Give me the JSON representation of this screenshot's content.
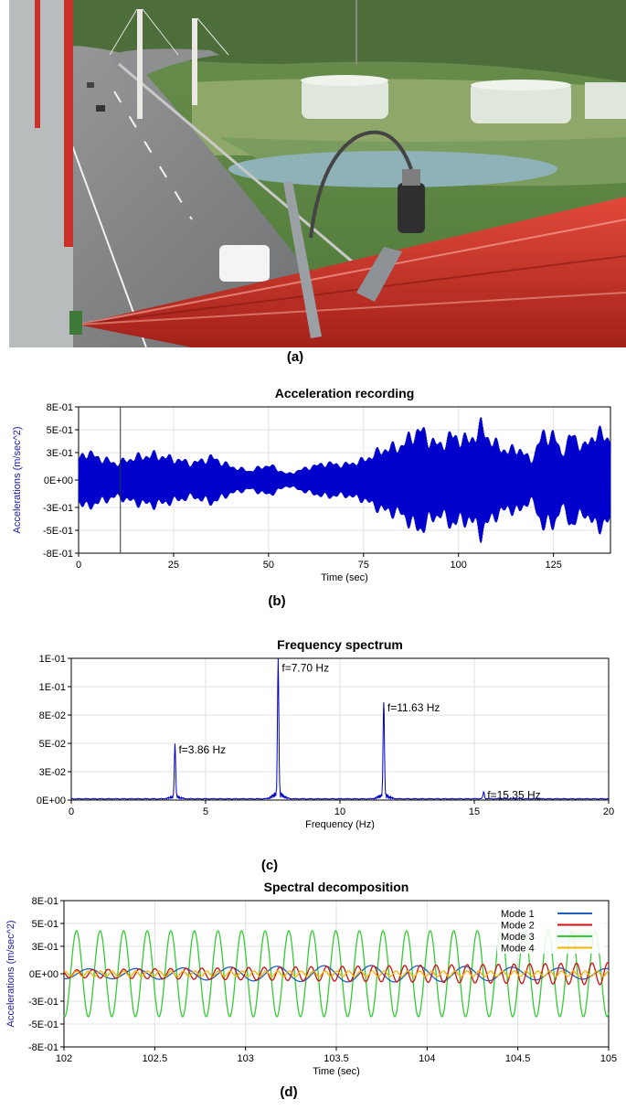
{
  "labels": {
    "a": "(a)",
    "b": "(b)",
    "c": "(c)",
    "d": "(d)"
  },
  "chart_data": [
    {
      "type": "line",
      "title": "Acceleration recording",
      "xlabel": "Time (sec)",
      "ylabel": "Accelerations (m/sec^2)",
      "xlim": [
        0,
        140
      ],
      "ylim": [
        -0.8,
        0.8
      ],
      "xticks": [
        0,
        25,
        50,
        75,
        100,
        125
      ],
      "xtick_labels": [
        "0",
        "25",
        "50",
        "75",
        "100",
        "125"
      ],
      "yticks": [
        -0.8,
        -0.55,
        -0.3,
        0,
        0.3,
        0.55,
        0.8
      ],
      "ytick_labels": [
        "-8E-01",
        "-5E-01",
        "-3E-01",
        "0E+00",
        "3E-01",
        "5E-01",
        "8E-01"
      ],
      "color": "#0000cc",
      "grid": true,
      "marker_line_x": 11,
      "envelope": {
        "t": [
          0,
          2,
          5,
          10,
          15,
          20,
          25,
          30,
          35,
          40,
          45,
          50,
          55,
          60,
          65,
          70,
          75,
          80,
          85,
          88,
          90,
          92,
          95,
          98,
          100,
          103,
          106,
          108,
          110,
          113,
          116,
          119,
          122,
          125,
          127,
          130,
          133,
          136,
          140
        ],
        "amplitude": [
          0.28,
          0.37,
          0.3,
          0.22,
          0.3,
          0.33,
          0.28,
          0.22,
          0.3,
          0.18,
          0.12,
          0.2,
          0.08,
          0.16,
          0.22,
          0.2,
          0.26,
          0.4,
          0.45,
          0.6,
          0.66,
          0.55,
          0.45,
          0.58,
          0.55,
          0.52,
          0.7,
          0.55,
          0.46,
          0.38,
          0.42,
          0.25,
          0.58,
          0.6,
          0.35,
          0.6,
          0.42,
          0.62,
          0.55
        ]
      }
    },
    {
      "type": "line",
      "title": "Frequency spectrum",
      "xlabel": "Frequency (Hz)",
      "ylabel": "",
      "xlim": [
        0,
        20
      ],
      "ylim": [
        0,
        0.125
      ],
      "xticks": [
        0,
        5,
        10,
        15,
        20
      ],
      "xtick_labels": [
        "0",
        "5",
        "10",
        "15",
        "20"
      ],
      "yticks": [
        0,
        0.025,
        0.05,
        0.075,
        0.1,
        0.125
      ],
      "ytick_labels": [
        "0E+00",
        "3E-02",
        "5E-02",
        "8E-02",
        "1E-01",
        "1E-01"
      ],
      "color": "#0000cc",
      "grid": true,
      "peaks": [
        {
          "f": 3.86,
          "amplitude": 0.046,
          "label": "f=3.86 Hz"
        },
        {
          "f": 7.7,
          "amplitude": 0.118,
          "label": "f=7.70 Hz"
        },
        {
          "f": 11.63,
          "amplitude": 0.083,
          "label": "f=11.63 Hz"
        },
        {
          "f": 15.35,
          "amplitude": 0.006,
          "label": "f=15.35 Hz"
        }
      ]
    },
    {
      "type": "line",
      "title": "Spectral decomposition",
      "xlabel": "Time (sec)",
      "ylabel": "Accelerations (m/sec^2)",
      "xlim": [
        102,
        105
      ],
      "ylim": [
        -0.8,
        0.8
      ],
      "xticks": [
        102,
        102.5,
        103,
        103.5,
        104,
        104.5,
        105
      ],
      "xtick_labels": [
        "102",
        "102.5",
        "103",
        "103.5",
        "104",
        "104.5",
        "105"
      ],
      "yticks": [
        -0.8,
        -0.55,
        -0.3,
        0,
        0.3,
        0.55,
        0.8
      ],
      "ytick_labels": [
        "-8E-01",
        "-5E-01",
        "-3E-01",
        "0E+00",
        "3E-01",
        "5E-01",
        "8E-01"
      ],
      "grid": true,
      "legend": "top-right",
      "series": [
        {
          "name": "Mode 1",
          "color": "#1f5fbf",
          "frequency": 3.86,
          "amplitude": 0.09
        },
        {
          "name": "Mode 2",
          "color": "#cc1111",
          "frequency": 11.63,
          "amplitude": 0.12
        },
        {
          "name": "Mode 3",
          "color": "#33cc33",
          "frequency": 7.7,
          "amplitude": 0.47
        },
        {
          "name": "Mode 4",
          "color": "#f2b600",
          "frequency": 15.35,
          "amplitude": 0.03
        }
      ]
    }
  ]
}
